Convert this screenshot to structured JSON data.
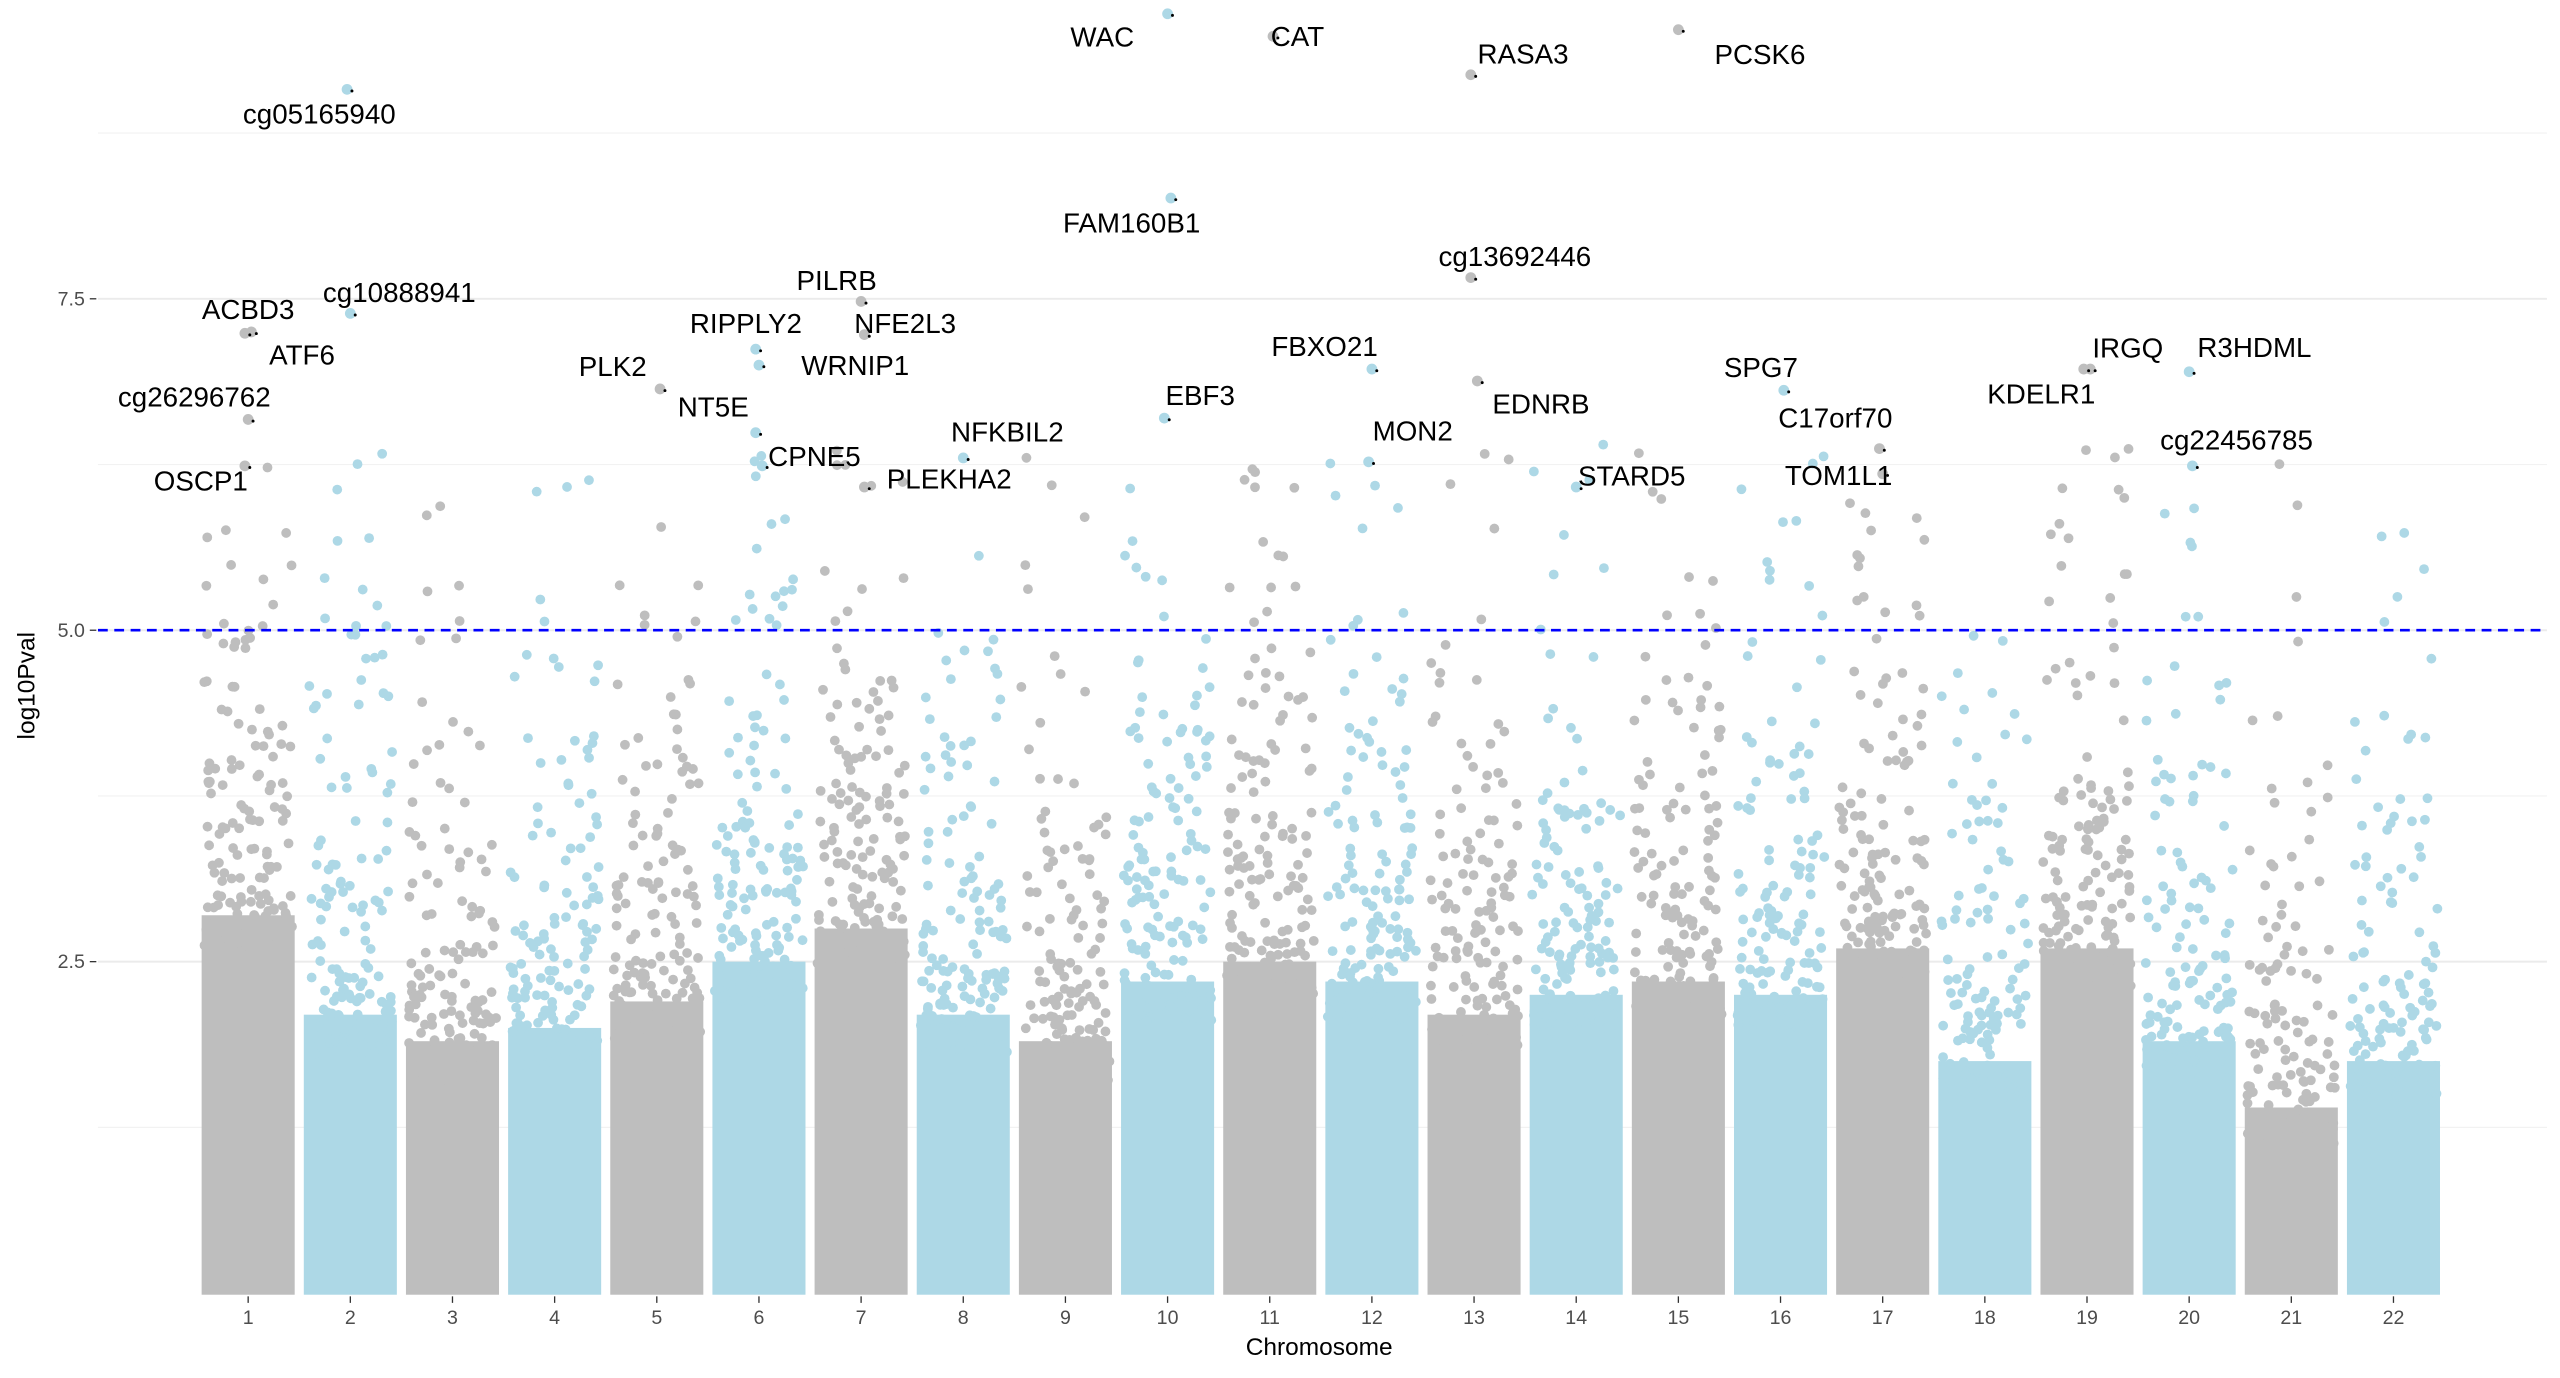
{
  "chart_data": {
    "type": "scatter",
    "subtype": "manhattan",
    "xlabel": "Chromosome",
    "ylabel": "log10Pval",
    "categories": [
      "1",
      "2",
      "3",
      "4",
      "5",
      "6",
      "7",
      "8",
      "9",
      "10",
      "11",
      "12",
      "13",
      "14",
      "15",
      "16",
      "17",
      "18",
      "19",
      "20",
      "21",
      "22"
    ],
    "yticks": [
      "2.5",
      "5.0",
      "7.5"
    ],
    "ylim": [
      0,
      9.75
    ],
    "grid": true,
    "threshold": 5.0,
    "colors": {
      "odd": "#bebebe",
      "even": "#add8e6",
      "threshold": "#0000ff"
    },
    "dense_band_top": [
      2.85,
      2.1,
      1.9,
      2.0,
      2.2,
      2.5,
      2.75,
      2.1,
      1.9,
      2.35,
      2.5,
      2.35,
      2.1,
      2.25,
      2.35,
      2.25,
      2.6,
      1.75,
      2.6,
      1.9,
      1.4,
      1.75
    ],
    "labeled_points": [
      {
        "label": "cg05165940",
        "chr": 2,
        "value": 9.08
      },
      {
        "label": "WAC",
        "chr": 10,
        "value": 9.65
      },
      {
        "label": "CAT",
        "chr": 11,
        "value": 9.48
      },
      {
        "label": "RASA3",
        "chr": 13,
        "value": 9.19
      },
      {
        "label": "PCSK6",
        "chr": 15,
        "value": 9.53
      },
      {
        "label": "FAM160B1",
        "chr": 10,
        "value": 8.26
      },
      {
        "label": "cg13692446",
        "chr": 13,
        "value": 7.66
      },
      {
        "label": "cg10888941",
        "chr": 2,
        "value": 7.39
      },
      {
        "label": "ACBD3",
        "chr": 1,
        "value": 7.25
      },
      {
        "label": "ATF6",
        "chr": 1,
        "value": 7.24
      },
      {
        "label": "PILRB",
        "chr": 7,
        "value": 7.48
      },
      {
        "label": "NFE2L3",
        "chr": 7,
        "value": 7.23
      },
      {
        "label": "RIPPLY2",
        "chr": 6,
        "value": 7.12
      },
      {
        "label": "WRNIP1",
        "chr": 6,
        "value": 7.0
      },
      {
        "label": "PLK2",
        "chr": 5,
        "value": 6.82
      },
      {
        "label": "NT5E",
        "chr": 6,
        "value": 6.49
      },
      {
        "label": "cg26296762",
        "chr": 1,
        "value": 6.59
      },
      {
        "label": "CPNE5",
        "chr": 6,
        "value": 6.24
      },
      {
        "label": "OSCP1",
        "chr": 1,
        "value": 6.24
      },
      {
        "label": "NFKBIL2",
        "chr": 8,
        "value": 6.3
      },
      {
        "label": "PLEKHA2",
        "chr": 7,
        "value": 6.08
      },
      {
        "label": "EBF3",
        "chr": 10,
        "value": 6.6
      },
      {
        "label": "FBXO21",
        "chr": 12,
        "value": 6.97
      },
      {
        "label": "EDNRB",
        "chr": 13,
        "value": 6.88
      },
      {
        "label": "MON2",
        "chr": 12,
        "value": 6.27
      },
      {
        "label": "STARD5",
        "chr": 14,
        "value": 6.08
      },
      {
        "label": "SPG7",
        "chr": 16,
        "value": 6.81
      },
      {
        "label": "C17orf70",
        "chr": 17,
        "value": 6.37
      },
      {
        "label": "TOM1L1",
        "chr": 17,
        "value": 6.18
      },
      {
        "label": "KDELR1",
        "chr": 19,
        "value": 6.97
      },
      {
        "label": "IRGQ",
        "chr": 19,
        "value": 6.97
      },
      {
        "label": "R3HDML",
        "chr": 20,
        "value": 6.95
      },
      {
        "label": "cg22456785",
        "chr": 20,
        "value": 6.24
      }
    ]
  }
}
